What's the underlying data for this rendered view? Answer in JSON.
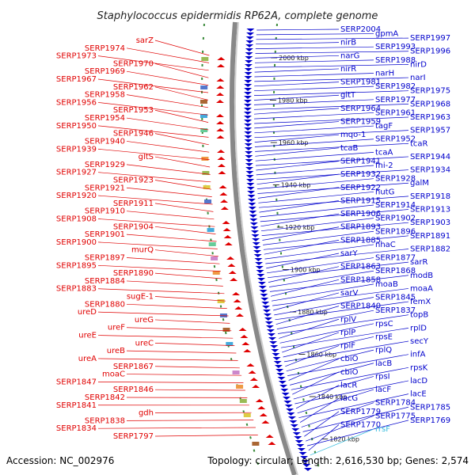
{
  "header": {
    "title": "Staphylococcus epidermidis RP62A, complete genome"
  },
  "footer": {
    "accession": "Accession: NC_002976",
    "summary": "Topology: circular; Length: 2,616,530 bp; Genes: 2,574"
  },
  "colors": {
    "forward": "#e00000",
    "reverse": "#0000cc",
    "rna": "#33bbdd",
    "backbone": "#888888"
  },
  "ticks": [
    "2000 kbp",
    "1980 kbp",
    "1960 kbp",
    "1940 kbp",
    "1920 kbp",
    "1900 kbp",
    "1880 kbp",
    "1860 kbp",
    "1840 kbp",
    "1820 kbp"
  ],
  "left_labels": [
    "sarZ",
    "SERP1974",
    "SERP1973",
    "SERP1970",
    "SERP1969",
    "SERP1967",
    "SERP1962",
    "SERP1958",
    "SERP1956",
    "SERP1953",
    "SERP1954",
    "SERP1950",
    "SERP1946",
    "SERP1940",
    "SERP1939",
    "gltS",
    "SERP1929",
    "SERP1927",
    "SERP1923",
    "SERP1921",
    "SERP1920",
    "SERP1911",
    "SERP1910",
    "SERP1908",
    "SERP1904",
    "SERP1901",
    "SERP1900",
    "murQ",
    "SERP1897",
    "SERP1895",
    "SERP1890",
    "SERP1884",
    "SERP1883",
    "sugE-1",
    "SERP1880",
    "ureD",
    "ureG",
    "ureF",
    "ureE",
    "ureC",
    "ureB",
    "ureA",
    "SERP1867",
    "moaC",
    "SERP1847",
    "SERP1846",
    "SERP1842",
    "SERP1841",
    "gdh",
    "SERP1838",
    "SERP1834",
    "SERP1797"
  ],
  "right_labels": [
    "SERP2004",
    "gpmA",
    "SERP1997",
    "nirB",
    "SERP1993",
    "SERP1996",
    "narG",
    "SERP1988",
    "nirD",
    "nirR",
    "narH",
    "narI",
    "SERP1981",
    "SERP1982",
    "SERP1975",
    "gltT",
    "SERP1977",
    "SERP1968",
    "SERP1964",
    "SERP1961",
    "SERP1963",
    "SERP1959",
    "tagF",
    "SERP1957",
    "mqo-1",
    "SERP1952",
    "tcaR",
    "tcaB",
    "tcaA",
    "SERP1944",
    "SERP1941",
    "fni-2",
    "SERP1934",
    "SERP1932",
    "SERP1928",
    "galM",
    "SERP1922",
    "hutG",
    "SERP1918",
    "SERP1915",
    "SERP1914",
    "SERP1913",
    "SERP1906",
    "SERP1902",
    "SERP1903",
    "SERP1893",
    "SERP1896",
    "SERP1891",
    "SERP1885",
    "nhaC",
    "SERP1882",
    "sarY",
    "SERP1877",
    "sarR",
    "SERP1863",
    "SERP1868",
    "modB",
    "SERP1858",
    "moaB",
    "moaA",
    "sarV",
    "SERP1845",
    "femX",
    "SERP1840",
    "SERP1837",
    "topB",
    "rplV",
    "rpsC",
    "rplD",
    "rplP",
    "rpsE",
    "secY",
    "rplF",
    "rplQ",
    "infA",
    "cbiO",
    "lacB",
    "rpsK",
    "cbiO",
    "rpsI",
    "lacD",
    "lacR",
    "lacF",
    "lacE",
    "lacG",
    "SERP1784",
    "SERP1785",
    "SERP1779",
    "SERP1775",
    "SERP1769",
    "SERP1770",
    "rrsF"
  ]
}
